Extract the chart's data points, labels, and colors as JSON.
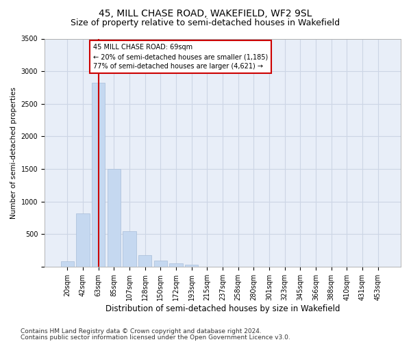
{
  "title1": "45, MILL CHASE ROAD, WAKEFIELD, WF2 9SL",
  "title2": "Size of property relative to semi-detached houses in Wakefield",
  "xlabel": "Distribution of semi-detached houses by size in Wakefield",
  "ylabel": "Number of semi-detached properties",
  "categories": [
    "20sqm",
    "42sqm",
    "63sqm",
    "85sqm",
    "107sqm",
    "128sqm",
    "150sqm",
    "172sqm",
    "193sqm",
    "215sqm",
    "237sqm",
    "258sqm",
    "280sqm",
    "301sqm",
    "323sqm",
    "345sqm",
    "366sqm",
    "388sqm",
    "410sqm",
    "431sqm",
    "453sqm"
  ],
  "values": [
    80,
    820,
    2820,
    1500,
    540,
    175,
    95,
    50,
    30,
    0,
    0,
    0,
    0,
    0,
    0,
    0,
    0,
    0,
    0,
    0,
    0
  ],
  "bar_color": "#c5d8f0",
  "bar_edge_color": "#a8bdd8",
  "grid_color": "#ccd5e5",
  "background_color": "#e8eef8",
  "red_line_color": "#cc0000",
  "red_line_x": 2.5,
  "annotation_text": "45 MILL CHASE ROAD: 69sqm\n← 20% of semi-detached houses are smaller (1,185)\n77% of semi-detached houses are larger (4,621) →",
  "annotation_box_color": "#ffffff",
  "annotation_box_edge": "#cc0000",
  "ylim": [
    0,
    3500
  ],
  "yticks": [
    0,
    500,
    1000,
    1500,
    2000,
    2500,
    3000,
    3500
  ],
  "footnote1": "Contains HM Land Registry data © Crown copyright and database right 2024.",
  "footnote2": "Contains public sector information licensed under the Open Government Licence v3.0.",
  "title1_fontsize": 10,
  "title2_fontsize": 9,
  "xlabel_fontsize": 8.5,
  "ylabel_fontsize": 7.5,
  "tick_fontsize": 7,
  "footnote_fontsize": 6.5
}
